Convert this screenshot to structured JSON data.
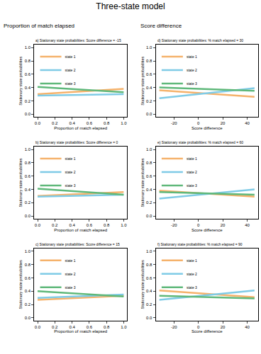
{
  "chart_data": {
    "title": "Three-state model",
    "column_titles": [
      "Proportion of match elapsed",
      "Score difference"
    ],
    "panels": [
      {
        "type": "line",
        "title": "a) Stationary state probabilities: Score difference = -15",
        "x_label": "Proportion of match elapsed",
        "y_label": "Stationary state probabilities",
        "x": [
          0,
          1
        ],
        "xlim": [
          -0.04,
          1.04
        ],
        "ylim": [
          -0.04,
          1.04
        ],
        "xticks": [
          {
            "value": 0,
            "label": "0.0"
          },
          0.2,
          0.4,
          0.6,
          0.8,
          {
            "value": 1,
            "label": "1.0"
          }
        ],
        "yticks": [
          {
            "value": 0,
            "label": "0.0"
          },
          0.2,
          0.4,
          0.6,
          0.8,
          {
            "value": 1,
            "label": "1.0"
          }
        ],
        "grid": false,
        "legend": "upper left",
        "series": [
          {
            "name": "state 1",
            "color": "#f5b26b",
            "values": [
              0.3,
              0.38
            ]
          },
          {
            "name": "state 2",
            "color": "#7fcbe6",
            "values": [
              0.28,
              0.3
            ]
          },
          {
            "name": "state 3",
            "color": "#5fb87a",
            "values": [
              0.41,
              0.33
            ]
          }
        ]
      },
      {
        "type": "line",
        "title": "b) Stationary state probabilities: Score difference = 0",
        "x_label": "Proportion of match elapsed",
        "y_label": "Stationary state probabilities",
        "x": [
          0,
          1
        ],
        "xlim": [
          -0.04,
          1.04
        ],
        "ylim": [
          -0.04,
          1.04
        ],
        "xticks": [
          {
            "value": 0,
            "label": "0.0"
          },
          0.2,
          0.4,
          0.6,
          0.8,
          {
            "value": 1,
            "label": "1.0"
          }
        ],
        "yticks": [
          {
            "value": 0,
            "label": "0.0"
          },
          0.2,
          0.4,
          0.6,
          0.8,
          {
            "value": 1,
            "label": "1.0"
          }
        ],
        "grid": false,
        "legend": "upper left",
        "series": [
          {
            "name": "state 1",
            "color": "#f5b26b",
            "values": [
              0.3,
              0.36
            ]
          },
          {
            "name": "state 2",
            "color": "#7fcbe6",
            "values": [
              0.29,
              0.32
            ]
          },
          {
            "name": "state 3",
            "color": "#5fb87a",
            "values": [
              0.41,
              0.32
            ]
          }
        ]
      },
      {
        "type": "line",
        "title": "c) Stationary state probabilities: Score difference = 15",
        "x_label": "Proportion of match elapsed",
        "y_label": "Stationary state probabilities",
        "x": [
          0,
          1
        ],
        "xlim": [
          -0.04,
          1.04
        ],
        "ylim": [
          -0.04,
          1.04
        ],
        "xticks": [
          {
            "value": 0,
            "label": "0.0"
          },
          0.2,
          0.4,
          0.6,
          0.8,
          {
            "value": 1,
            "label": "1.0"
          }
        ],
        "yticks": [
          {
            "value": 0,
            "label": "0.0"
          },
          0.2,
          0.4,
          0.6,
          0.8,
          {
            "value": 1,
            "label": "1.0"
          }
        ],
        "grid": false,
        "legend": "upper left",
        "series": [
          {
            "name": "state 1",
            "color": "#f5b26b",
            "values": [
              0.27,
              0.33
            ]
          },
          {
            "name": "state 2",
            "color": "#7fcbe6",
            "values": [
              0.3,
              0.35
            ]
          },
          {
            "name": "state 3",
            "color": "#5fb87a",
            "values": [
              0.4,
              0.32
            ]
          }
        ]
      },
      {
        "type": "line",
        "title": "d) Stationary state probabilities: % match elapsed = 30",
        "x_label": "Score difference",
        "y_label": "Stationary state probabilities",
        "x": [
          -32,
          46
        ],
        "xlim": [
          -35,
          49
        ],
        "ylim": [
          -0.04,
          1.04
        ],
        "xticks": [
          -20,
          0,
          20,
          40
        ],
        "yticks": [
          {
            "value": 0,
            "label": "0.0"
          },
          0.2,
          0.4,
          0.6,
          0.8,
          {
            "value": 1,
            "label": "1.0"
          }
        ],
        "grid": false,
        "legend": "upper left",
        "series": [
          {
            "name": "state 1",
            "color": "#f5b26b",
            "values": [
              0.36,
              0.26
            ]
          },
          {
            "name": "state 2",
            "color": "#7fcbe6",
            "values": [
              0.24,
              0.39
            ]
          },
          {
            "name": "state 3",
            "color": "#5fb87a",
            "values": [
              0.4,
              0.35
            ]
          }
        ]
      },
      {
        "type": "line",
        "title": "e) Stationary state probabilities: % match elapsed = 60",
        "x_label": "Score difference",
        "y_label": "Stationary state probabilities",
        "x": [
          -32,
          46
        ],
        "xlim": [
          -35,
          49
        ],
        "ylim": [
          -0.04,
          1.04
        ],
        "xticks": [
          -20,
          0,
          20,
          40
        ],
        "yticks": [
          {
            "value": 0,
            "label": "0.0"
          },
          0.2,
          0.4,
          0.6,
          0.8,
          {
            "value": 1,
            "label": "1.0"
          }
        ],
        "grid": false,
        "legend": "upper left",
        "series": [
          {
            "name": "state 1",
            "color": "#f5b26b",
            "values": [
              0.38,
              0.29
            ]
          },
          {
            "name": "state 2",
            "color": "#7fcbe6",
            "values": [
              0.26,
              0.4
            ]
          },
          {
            "name": "state 3",
            "color": "#5fb87a",
            "values": [
              0.36,
              0.32
            ]
          }
        ]
      },
      {
        "type": "line",
        "title": "f) Stationary state probabilities: % match elapsed = 90",
        "x_label": "Score difference",
        "y_label": "Stationary state probabilities",
        "x": [
          -32,
          46
        ],
        "xlim": [
          -35,
          49
        ],
        "ylim": [
          -0.04,
          1.04
        ],
        "xticks": [
          -20,
          0,
          20,
          40
        ],
        "yticks": [
          {
            "value": 0,
            "label": "0.0"
          },
          0.2,
          0.4,
          0.6,
          0.8,
          {
            "value": 1,
            "label": "1.0"
          }
        ],
        "grid": false,
        "legend": "upper left",
        "series": [
          {
            "name": "state 1",
            "color": "#f5b26b",
            "values": [
              0.41,
              0.31
            ]
          },
          {
            "name": "state 2",
            "color": "#7fcbe6",
            "values": [
              0.27,
              0.41
            ]
          },
          {
            "name": "state 3",
            "color": "#5fb87a",
            "values": [
              0.33,
              0.29
            ]
          }
        ]
      }
    ]
  }
}
